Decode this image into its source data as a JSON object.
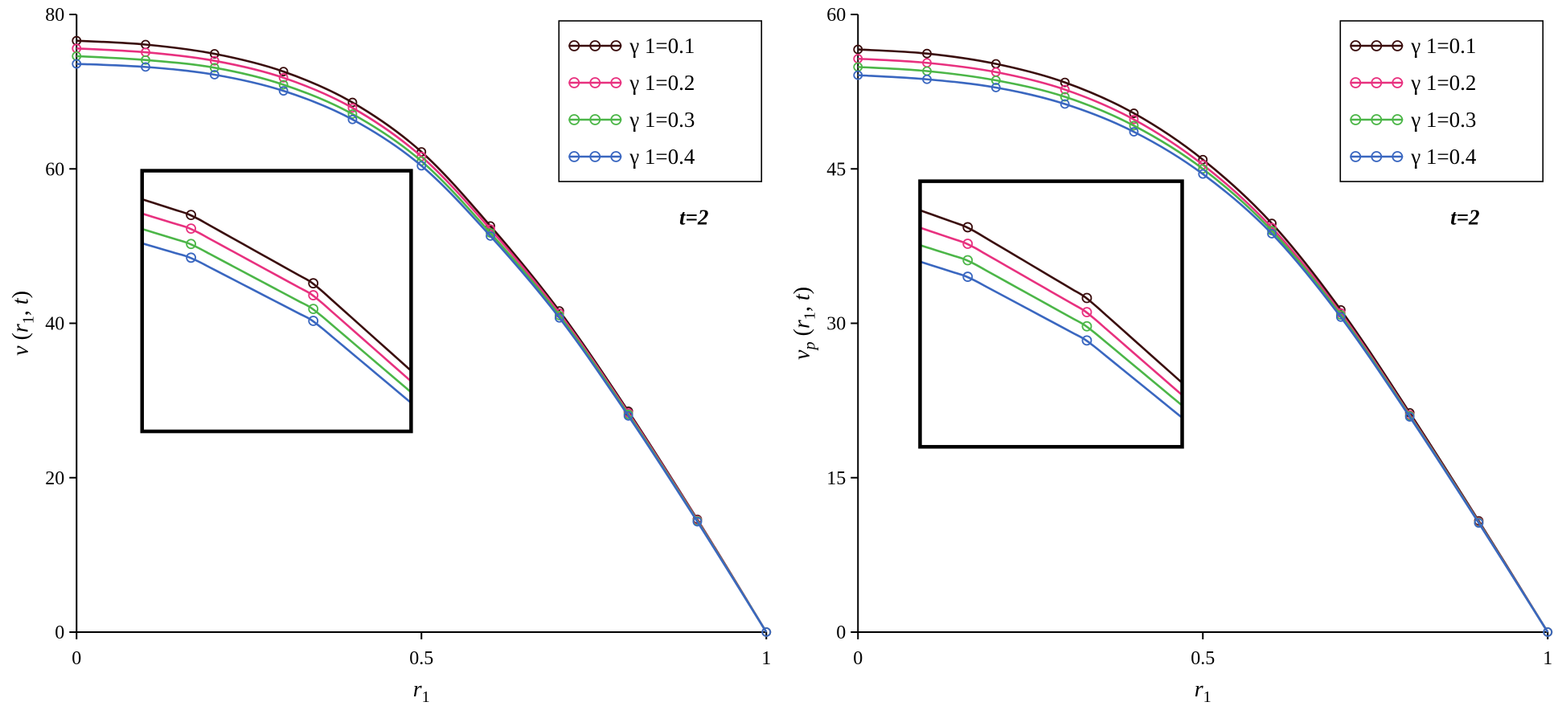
{
  "figure": {
    "background": "#ffffff"
  },
  "chart_data": [
    {
      "id": "left",
      "type": "line",
      "title": "",
      "xlabel": "r1",
      "ylabel": "v(r1,t)",
      "xlabel_segments": [
        {
          "t": "r",
          "i": true
        },
        {
          "t": "1",
          "sub": true
        }
      ],
      "ylabel_segments": [
        {
          "t": "v",
          "i": true
        },
        {
          "t": " ("
        },
        {
          "t": "r",
          "i": true
        },
        {
          "t": "1",
          "sub": true
        },
        {
          "t": ", "
        },
        {
          "t": "t",
          "i": true
        },
        {
          "t": ")"
        }
      ],
      "xlim": [
        0,
        1
      ],
      "ylim": [
        0,
        80
      ],
      "xticks": [
        {
          "v": 0,
          "label": "0"
        },
        {
          "v": 0.5,
          "label": "0.5"
        },
        {
          "v": 1,
          "label": "1"
        }
      ],
      "yticks": [
        {
          "v": 0,
          "label": "0"
        },
        {
          "v": 20,
          "label": "20"
        },
        {
          "v": 40,
          "label": "40"
        },
        {
          "v": 60,
          "label": "60"
        },
        {
          "v": 80,
          "label": "80"
        }
      ],
      "annotation": {
        "text": "t=2",
        "fx": 0.895,
        "fy": 0.34
      },
      "legend_position": "top-right",
      "x": [
        0,
        0.1,
        0.2,
        0.3,
        0.4,
        0.5,
        0.6,
        0.7,
        0.8,
        0.9,
        1.0
      ],
      "series": [
        {
          "name": "γ 1=0.1",
          "color": "#3a0d0d",
          "values": [
            76.6,
            76.1,
            74.9,
            72.6,
            68.6,
            62.2,
            52.6,
            41.6,
            28.6,
            14.6,
            0
          ]
        },
        {
          "name": "γ 1=0.2",
          "color": "#e8317f",
          "values": [
            75.6,
            75.1,
            74.0,
            71.8,
            67.9,
            61.6,
            52.2,
            41.3,
            28.4,
            14.5,
            0
          ]
        },
        {
          "name": "γ 1=0.3",
          "color": "#4cb648",
          "values": [
            74.6,
            74.1,
            73.1,
            70.9,
            67.1,
            61.0,
            51.7,
            41.0,
            28.2,
            14.4,
            0
          ]
        },
        {
          "name": "γ 1=0.4",
          "color": "#3a67c0",
          "values": [
            73.6,
            73.2,
            72.2,
            70.1,
            66.4,
            60.4,
            51.3,
            40.7,
            28.0,
            14.3,
            0
          ]
        }
      ],
      "inset": {
        "box": [
          0.095,
          0.253,
          0.485,
          0.675
        ],
        "x_range": [
          0.26,
          0.48
        ]
      }
    },
    {
      "id": "right",
      "type": "line",
      "title": "",
      "xlabel": "r1",
      "ylabel": "vp(r1,t)",
      "xlabel_segments": [
        {
          "t": "r",
          "i": true
        },
        {
          "t": "1",
          "sub": true
        }
      ],
      "ylabel_segments": [
        {
          "t": "v",
          "i": true
        },
        {
          "t": "p",
          "sub": true,
          "i": true
        },
        {
          "t": " ("
        },
        {
          "t": "r",
          "i": true
        },
        {
          "t": "1",
          "sub": true
        },
        {
          "t": ", "
        },
        {
          "t": "t",
          "i": true
        },
        {
          "t": ")"
        }
      ],
      "xlim": [
        0,
        1
      ],
      "ylim": [
        0,
        60
      ],
      "xticks": [
        {
          "v": 0,
          "label": "0"
        },
        {
          "v": 0.5,
          "label": "0.5"
        },
        {
          "v": 1,
          "label": "1"
        }
      ],
      "yticks": [
        {
          "v": 0,
          "label": "0"
        },
        {
          "v": 15,
          "label": "15"
        },
        {
          "v": 30,
          "label": "30"
        },
        {
          "v": 45,
          "label": "45"
        },
        {
          "v": 60,
          "label": "60"
        }
      ],
      "annotation": {
        "text": "t=2",
        "fx": 0.88,
        "fy": 0.34
      },
      "legend_position": "top-right",
      "x": [
        0,
        0.1,
        0.2,
        0.3,
        0.4,
        0.5,
        0.6,
        0.7,
        0.8,
        0.9,
        1.0
      ],
      "series": [
        {
          "name": "γ 1=0.1",
          "color": "#3a0d0d",
          "values": [
            56.6,
            56.2,
            55.2,
            53.4,
            50.4,
            45.9,
            39.7,
            31.3,
            21.3,
            10.8,
            0
          ]
        },
        {
          "name": "γ 1=0.2",
          "color": "#e8317f",
          "values": [
            55.7,
            55.3,
            54.4,
            52.7,
            49.8,
            45.4,
            39.3,
            31.0,
            21.1,
            10.7,
            0
          ]
        },
        {
          "name": "γ 1=0.3",
          "color": "#4cb648",
          "values": [
            54.9,
            54.5,
            53.6,
            52.0,
            49.2,
            45.0,
            39.0,
            30.8,
            21.0,
            10.65,
            0
          ]
        },
        {
          "name": "γ 1=0.4",
          "color": "#3a67c0",
          "values": [
            54.1,
            53.7,
            52.9,
            51.3,
            48.6,
            44.5,
            38.7,
            30.6,
            20.9,
            10.6,
            0
          ]
        }
      ],
      "inset": {
        "box": [
          0.09,
          0.27,
          0.47,
          0.7
        ],
        "x_range": [
          0.26,
          0.48
        ]
      }
    }
  ]
}
